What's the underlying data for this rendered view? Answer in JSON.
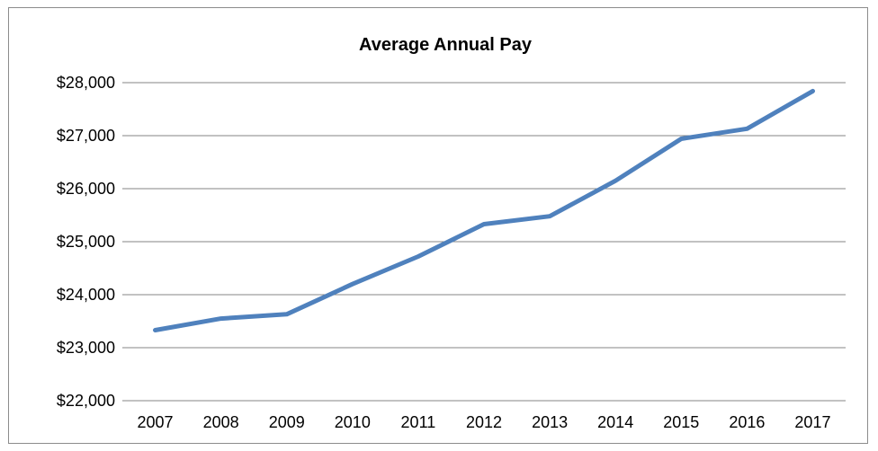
{
  "chart_data": {
    "type": "line",
    "title": "Average Annual Pay",
    "xlabel": "",
    "ylabel": "",
    "categories": [
      "2007",
      "2008",
      "2009",
      "2010",
      "2011",
      "2012",
      "2013",
      "2014",
      "2015",
      "2016",
      "2017"
    ],
    "series": [
      {
        "values": [
          23330,
          23550,
          23630,
          24200,
          24720,
          25330,
          25480,
          26150,
          26940,
          27130,
          27840
        ]
      }
    ],
    "ylim": [
      22000,
      28000
    ],
    "yticks": [
      22000,
      23000,
      24000,
      25000,
      26000,
      27000,
      28000
    ],
    "ytick_labels": [
      "$22,000",
      "$23,000",
      "$24,000",
      "$25,000",
      "$26,000",
      "$27,000",
      "$28,000"
    ],
    "grid": "horizontal",
    "legend": "none",
    "colors": {
      "line": "#4f81bd",
      "grid": "#868686"
    }
  }
}
